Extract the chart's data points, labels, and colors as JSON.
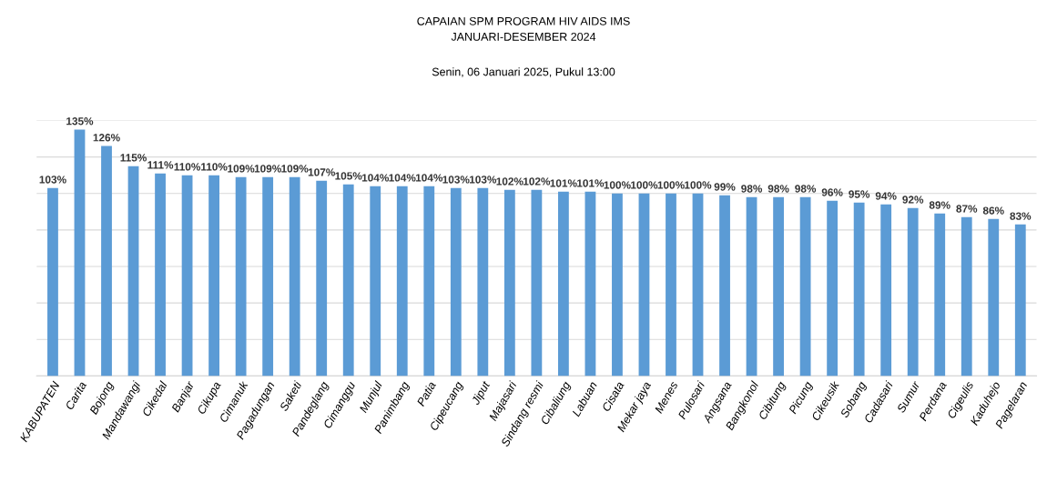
{
  "chart_data": {
    "type": "bar",
    "title": "CAPAIAN SPM PROGRAM HIV AIDS IMS\nJANUARI-DESEMBER 2024",
    "subtitle": "Senin, 06 Januari 2025, Pukul 13:00",
    "categories": [
      "KABUPATEN",
      "Carita",
      "Bojong",
      "Mandawangi",
      "Cikedal",
      "Banjar",
      "Cikupa",
      "Cimanuk",
      "Pagadungan",
      "Saketi",
      "Pandeglang",
      "Cimanggu",
      "Munjul",
      "Panimbang",
      "Patia",
      "Cipeucang",
      "Jiput",
      "Majasari",
      "Sindang resmi",
      "Cibaliung",
      "Labuan",
      "Cisata",
      "Mekar jaya",
      "Menes",
      "Pulosari",
      "Angsana",
      "Bangkonol",
      "Cibitung",
      "Picung",
      "Cikeusik",
      "Sobang",
      "Cadasari",
      "Sumur",
      "Perdana",
      "Cigeulis",
      "Kaduhejo",
      "Pagelaran"
    ],
    "values": [
      103,
      135,
      126,
      115,
      111,
      110,
      110,
      109,
      109,
      109,
      107,
      105,
      104,
      104,
      104,
      103,
      103,
      102,
      102,
      101,
      101,
      100,
      100,
      100,
      100,
      99,
      98,
      98,
      98,
      96,
      95,
      94,
      92,
      89,
      87,
      86,
      83
    ],
    "value_labels": [
      "103%",
      "135%",
      "126%",
      "115%",
      "111%",
      "110%",
      "110%",
      "109%",
      "109%",
      "109%",
      "107%",
      "105%",
      "104%",
      "104%",
      "104%",
      "103%",
      "103%",
      "102%",
      "102%",
      "101%",
      "101%",
      "100%",
      "100%",
      "100%",
      "100%",
      "99%",
      "98%",
      "98%",
      "98%",
      "96%",
      "95%",
      "94%",
      "92%",
      "89%",
      "87%",
      "86%",
      "83%"
    ],
    "color": "#5b9bd5",
    "ylim": [
      0,
      140
    ],
    "yticks": [
      {
        "value": 0,
        "label": null
      },
      {
        "value": 20,
        "label": null
      },
      {
        "value": 40,
        "label": null
      },
      {
        "value": 60,
        "label": null
      },
      {
        "value": 80,
        "label": null
      },
      {
        "value": 100,
        "label": null
      },
      {
        "value": 120,
        "label": null
      },
      {
        "value": 140,
        "label": null
      }
    ],
    "grid": "y",
    "tick_labels": "x"
  }
}
